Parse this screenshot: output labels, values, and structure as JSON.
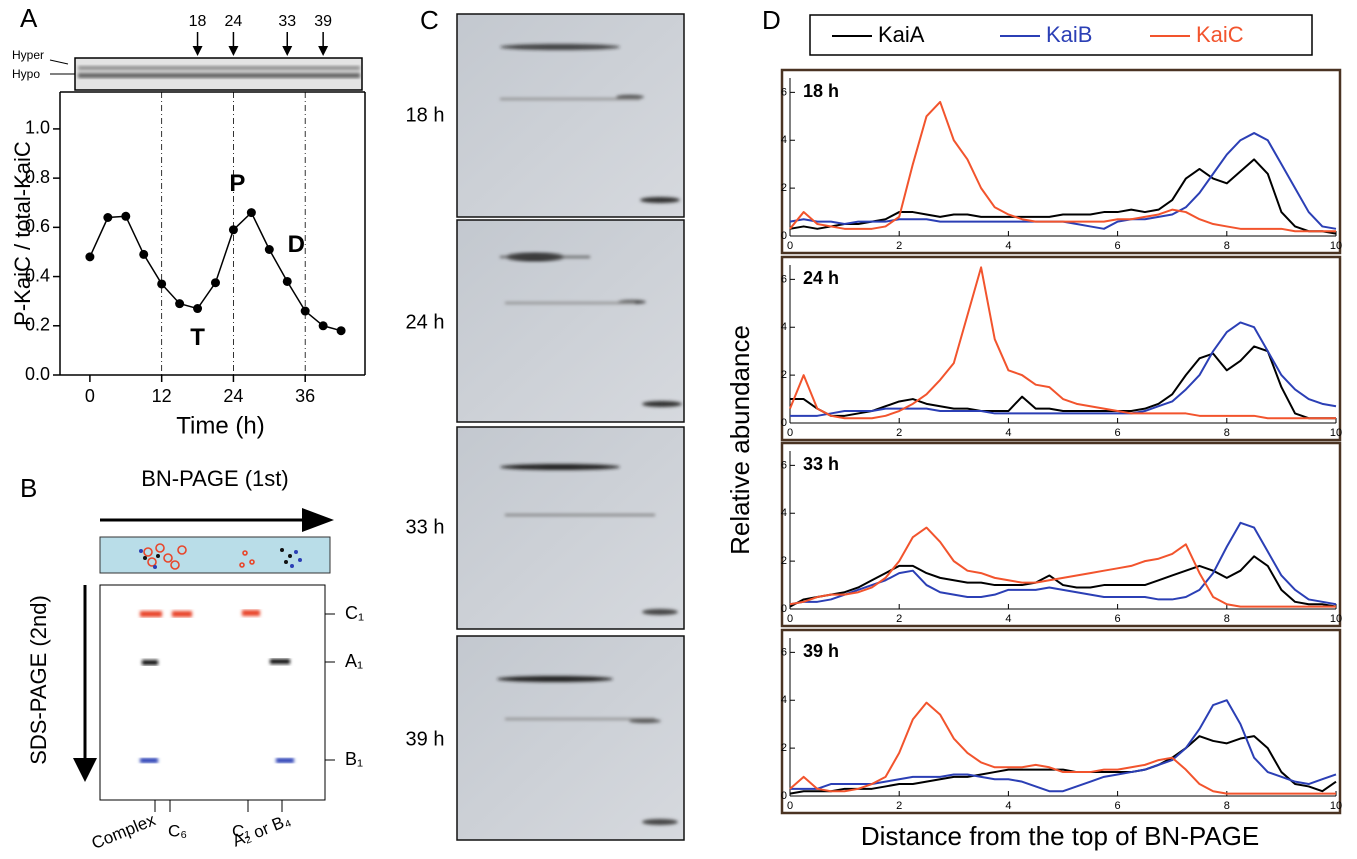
{
  "panel_labels": [
    "A",
    "B",
    "C",
    "D"
  ],
  "chart_data": [
    {
      "type": "line",
      "xlabel": "Time (h)",
      "ylabel": "P-KaiC / total-KaiC",
      "color": "#000000",
      "x": [
        0,
        3,
        6,
        9,
        12,
        15,
        18,
        21,
        24,
        27,
        30,
        33,
        36,
        39,
        42
      ],
      "values": [
        0.48,
        0.64,
        0.645,
        0.49,
        0.37,
        0.29,
        0.27,
        0.375,
        0.59,
        0.66,
        0.51,
        0.38,
        0.26,
        0.2,
        0.18
      ],
      "xlim": [
        -5,
        46
      ],
      "ylim": [
        0,
        1.15
      ],
      "xticks": [
        0,
        12,
        24,
        36
      ],
      "yticks": [
        {
          "value": 0,
          "label": "0.0"
        },
        0.2,
        0.4,
        0.6,
        0.8,
        {
          "value": 1,
          "label": "1.0"
        }
      ],
      "vlines": [
        12,
        24,
        36
      ],
      "annotations": [
        "T",
        "P",
        "D"
      ],
      "arrows": [
        18,
        24,
        33,
        39
      ],
      "gel_labels": [
        "Hyper",
        "Hypo"
      ]
    },
    {
      "type": "line",
      "title": "18 h",
      "ylabel": "Relative abundance",
      "x": [
        0,
        0.25,
        0.5,
        0.75,
        1,
        1.25,
        1.5,
        1.75,
        2,
        2.25,
        2.5,
        2.75,
        3,
        3.25,
        3.5,
        3.75,
        4,
        4.25,
        4.5,
        4.75,
        5,
        5.25,
        5.5,
        5.75,
        6,
        6.25,
        6.5,
        6.75,
        7,
        7.25,
        7.5,
        7.75,
        8,
        8.25,
        8.5,
        8.75,
        9,
        9.25,
        9.5,
        9.75,
        10
      ],
      "series": [
        {
          "name": "KaiA",
          "color": "#000000",
          "values": [
            0.3,
            0.4,
            0.3,
            0.4,
            0.5,
            0.5,
            0.6,
            0.7,
            1.0,
            1.0,
            0.9,
            0.8,
            0.9,
            0.9,
            0.8,
            0.8,
            0.8,
            0.8,
            0.8,
            0.8,
            0.9,
            0.9,
            0.9,
            1.0,
            1.0,
            1.1,
            1.0,
            1.1,
            1.5,
            2.4,
            2.8,
            2.4,
            2.2,
            2.7,
            3.2,
            2.6,
            1.0,
            0.4,
            0.2,
            0.2,
            0.1
          ]
        },
        {
          "name": "KaiB",
          "color": "#2b3fb5",
          "values": [
            0.6,
            0.7,
            0.6,
            0.6,
            0.5,
            0.6,
            0.6,
            0.6,
            0.7,
            0.7,
            0.7,
            0.6,
            0.6,
            0.6,
            0.6,
            0.6,
            0.6,
            0.6,
            0.6,
            0.6,
            0.6,
            0.5,
            0.4,
            0.3,
            0.6,
            0.7,
            0.7,
            0.8,
            0.9,
            1.2,
            1.8,
            2.6,
            3.4,
            4.0,
            4.3,
            4.0,
            3.0,
            2.0,
            1.0,
            0.4,
            0.3
          ]
        },
        {
          "name": "KaiC",
          "color": "#f2542d",
          "values": [
            0.3,
            1.0,
            0.5,
            0.4,
            0.3,
            0.3,
            0.3,
            0.4,
            0.8,
            3.0,
            5.0,
            5.6,
            4.0,
            3.2,
            2.0,
            1.2,
            0.9,
            0.7,
            0.6,
            0.6,
            0.6,
            0.6,
            0.6,
            0.6,
            0.7,
            0.7,
            0.8,
            0.9,
            1.1,
            1.0,
            0.7,
            0.5,
            0.4,
            0.3,
            0.3,
            0.3,
            0.3,
            0.2,
            0.2,
            0.2,
            0.2
          ]
        }
      ],
      "xlim": [
        0,
        10
      ],
      "ylim": [
        0,
        6.6
      ],
      "xticks": [
        0,
        2,
        4,
        6,
        8,
        10
      ],
      "yticks": [
        0,
        2,
        4,
        6
      ]
    },
    {
      "type": "line",
      "title": "24 h",
      "x": [
        0,
        0.25,
        0.5,
        0.75,
        1,
        1.25,
        1.5,
        1.75,
        2,
        2.25,
        2.5,
        2.75,
        3,
        3.25,
        3.5,
        3.75,
        4,
        4.25,
        4.5,
        4.75,
        5,
        5.25,
        5.5,
        5.75,
        6,
        6.25,
        6.5,
        6.75,
        7,
        7.25,
        7.5,
        7.75,
        8,
        8.25,
        8.5,
        8.75,
        9,
        9.25,
        9.5,
        9.75,
        10
      ],
      "series": [
        {
          "name": "KaiA",
          "color": "#000000",
          "values": [
            1.0,
            1.0,
            0.6,
            0.3,
            0.3,
            0.4,
            0.5,
            0.7,
            0.9,
            1.0,
            0.8,
            0.7,
            0.6,
            0.6,
            0.5,
            0.5,
            0.5,
            1.1,
            0.6,
            0.6,
            0.5,
            0.5,
            0.5,
            0.5,
            0.5,
            0.5,
            0.6,
            0.8,
            1.2,
            2.0,
            2.7,
            2.9,
            2.2,
            2.6,
            3.2,
            3.0,
            1.5,
            0.4,
            0.2,
            0.2,
            0.2
          ]
        },
        {
          "name": "KaiB",
          "color": "#2b3fb5",
          "values": [
            0.3,
            0.3,
            0.3,
            0.4,
            0.5,
            0.5,
            0.5,
            0.6,
            0.6,
            0.6,
            0.6,
            0.5,
            0.5,
            0.5,
            0.5,
            0.4,
            0.4,
            0.4,
            0.4,
            0.4,
            0.4,
            0.4,
            0.4,
            0.4,
            0.4,
            0.4,
            0.5,
            0.7,
            0.9,
            1.4,
            2.0,
            3.0,
            3.8,
            4.2,
            4.0,
            3.0,
            2.0,
            1.4,
            1.0,
            0.8,
            0.7
          ]
        },
        {
          "name": "KaiC",
          "color": "#f2542d",
          "values": [
            0.6,
            2.0,
            0.6,
            0.3,
            0.2,
            0.2,
            0.2,
            0.3,
            0.5,
            0.8,
            1.2,
            1.8,
            2.5,
            4.5,
            6.5,
            3.5,
            2.2,
            2.0,
            1.6,
            1.5,
            1.0,
            0.8,
            0.7,
            0.6,
            0.5,
            0.4,
            0.4,
            0.4,
            0.4,
            0.4,
            0.3,
            0.3,
            0.3,
            0.3,
            0.3,
            0.2,
            0.2,
            0.2,
            0.2,
            0.2,
            0.2
          ]
        }
      ],
      "xlim": [
        0,
        10
      ],
      "ylim": [
        0,
        6.6
      ],
      "xticks": [
        0,
        2,
        4,
        6,
        8,
        10
      ],
      "yticks": [
        0,
        2,
        4,
        6
      ]
    },
    {
      "type": "line",
      "title": "33 h",
      "x": [
        0,
        0.25,
        0.5,
        0.75,
        1,
        1.25,
        1.5,
        1.75,
        2,
        2.25,
        2.5,
        2.75,
        3,
        3.25,
        3.5,
        3.75,
        4,
        4.25,
        4.5,
        4.75,
        5,
        5.25,
        5.5,
        5.75,
        6,
        6.25,
        6.5,
        6.75,
        7,
        7.25,
        7.5,
        7.75,
        8,
        8.25,
        8.5,
        8.75,
        9,
        9.25,
        9.5,
        9.75,
        10
      ],
      "series": [
        {
          "name": "KaiA",
          "color": "#000000",
          "values": [
            0.1,
            0.4,
            0.5,
            0.6,
            0.7,
            0.9,
            1.2,
            1.5,
            1.8,
            1.8,
            1.5,
            1.3,
            1.2,
            1.1,
            1.1,
            1.0,
            1.0,
            1.0,
            1.1,
            1.4,
            1.0,
            0.9,
            0.9,
            1.0,
            1.0,
            1.0,
            1.0,
            1.2,
            1.4,
            1.6,
            1.8,
            1.6,
            1.3,
            1.6,
            2.2,
            1.8,
            0.8,
            0.3,
            0.2,
            0.2,
            0.1
          ]
        },
        {
          "name": "KaiB",
          "color": "#2b3fb5",
          "values": [
            0.2,
            0.3,
            0.3,
            0.4,
            0.6,
            0.8,
            1.0,
            1.2,
            1.5,
            1.6,
            1.0,
            0.7,
            0.6,
            0.5,
            0.5,
            0.6,
            0.8,
            0.8,
            0.8,
            0.9,
            0.8,
            0.7,
            0.6,
            0.5,
            0.5,
            0.5,
            0.5,
            0.4,
            0.4,
            0.5,
            0.8,
            1.5,
            2.6,
            3.6,
            3.4,
            2.4,
            1.4,
            0.8,
            0.4,
            0.3,
            0.2
          ]
        },
        {
          "name": "KaiC",
          "color": "#f2542d",
          "values": [
            0.2,
            0.3,
            0.5,
            0.6,
            0.6,
            0.7,
            0.9,
            1.3,
            2.0,
            3.0,
            3.4,
            2.8,
            2.0,
            1.6,
            1.5,
            1.3,
            1.2,
            1.1,
            1.1,
            1.2,
            1.3,
            1.4,
            1.5,
            1.6,
            1.7,
            1.8,
            2.0,
            2.1,
            2.3,
            2.7,
            1.5,
            0.5,
            0.2,
            0.1,
            0.1,
            0.1,
            0.1,
            0.1,
            0.1,
            0.1,
            0.1
          ]
        }
      ],
      "xlim": [
        0,
        10
      ],
      "ylim": [
        0,
        6.6
      ],
      "xticks": [
        0,
        2,
        4,
        6,
        8,
        10
      ],
      "yticks": [
        0,
        2,
        4,
        6
      ]
    },
    {
      "type": "line",
      "title": "39 h",
      "xlabel": "Distance from the top of BN-PAGE",
      "x": [
        0,
        0.25,
        0.5,
        0.75,
        1,
        1.25,
        1.5,
        1.75,
        2,
        2.25,
        2.5,
        2.75,
        3,
        3.25,
        3.5,
        3.75,
        4,
        4.25,
        4.5,
        4.75,
        5,
        5.25,
        5.5,
        5.75,
        6,
        6.25,
        6.5,
        6.75,
        7,
        7.25,
        7.5,
        7.75,
        8,
        8.25,
        8.5,
        8.75,
        9,
        9.25,
        9.5,
        9.75,
        10
      ],
      "series": [
        {
          "name": "KaiA",
          "color": "#000000",
          "values": [
            0.1,
            0.2,
            0.2,
            0.2,
            0.3,
            0.3,
            0.3,
            0.4,
            0.5,
            0.5,
            0.6,
            0.7,
            0.8,
            0.8,
            0.9,
            1.0,
            1.1,
            1.1,
            1.1,
            1.1,
            1.1,
            1.0,
            1.0,
            1.0,
            1.0,
            1.0,
            1.1,
            1.3,
            1.6,
            2.0,
            2.5,
            2.3,
            2.2,
            2.4,
            2.5,
            2.0,
            1.0,
            0.5,
            0.4,
            0.2,
            0.6
          ]
        },
        {
          "name": "KaiB",
          "color": "#2b3fb5",
          "values": [
            0.3,
            0.3,
            0.3,
            0.5,
            0.5,
            0.5,
            0.5,
            0.6,
            0.7,
            0.8,
            0.8,
            0.8,
            0.9,
            0.9,
            0.8,
            0.7,
            0.7,
            0.6,
            0.4,
            0.2,
            0.2,
            0.4,
            0.6,
            0.8,
            0.9,
            1.0,
            1.1,
            1.3,
            1.5,
            2.0,
            2.8,
            3.8,
            4.0,
            3.0,
            1.6,
            1.0,
            0.8,
            0.6,
            0.5,
            0.7,
            0.9
          ]
        },
        {
          "name": "KaiC",
          "color": "#f2542d",
          "values": [
            0.3,
            0.8,
            0.3,
            0.2,
            0.2,
            0.3,
            0.5,
            0.8,
            1.8,
            3.2,
            3.9,
            3.4,
            2.4,
            1.8,
            1.4,
            1.2,
            1.2,
            1.2,
            1.3,
            1.2,
            1.0,
            1.0,
            1.0,
            1.1,
            1.1,
            1.2,
            1.3,
            1.5,
            1.6,
            1.1,
            0.5,
            0.2,
            0.1,
            0.1,
            0.1,
            0.1,
            0.1,
            0.1,
            0.1,
            0.1,
            0.1
          ]
        }
      ],
      "xlim": [
        0,
        10
      ],
      "ylim": [
        0,
        6.6
      ],
      "xticks": [
        0,
        2,
        4,
        6,
        8,
        10
      ],
      "yticks": [
        0,
        2,
        4,
        6
      ]
    }
  ],
  "panel_b": {
    "title": "BN-PAGE (1st)",
    "side": "SDS-PAGE (2nd)",
    "rows": [
      "C₁",
      "A₁",
      "B₁"
    ],
    "columns": [
      "Complex",
      "C₆",
      "C₁",
      "A₂ or B₄"
    ]
  },
  "panel_c": {
    "lanes": [
      "18 h",
      "24 h",
      "33 h",
      "39 h"
    ]
  }
}
